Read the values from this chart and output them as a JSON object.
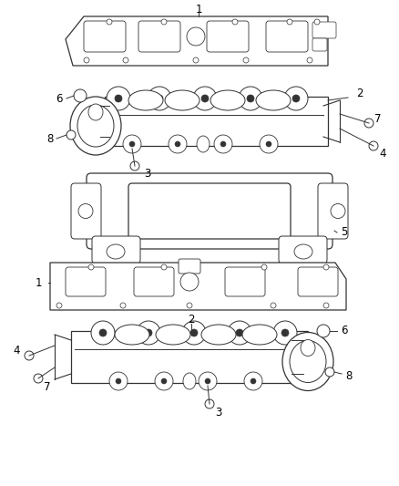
{
  "bg_color": "#ffffff",
  "line_color": "#333333",
  "label_color": "#000000",
  "label_fontsize": 8.5,
  "fig_width": 4.38,
  "fig_height": 5.33,
  "dpi": 100
}
